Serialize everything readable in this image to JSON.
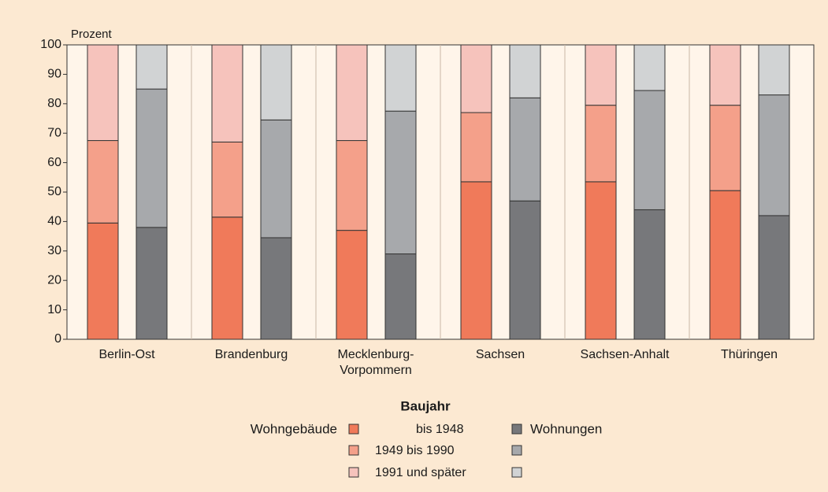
{
  "chart_data": {
    "type": "grouped_stacked_bar",
    "y_label": "Prozent",
    "legend_title": "Baujahr",
    "categories": [
      "Berlin-Ost",
      "Brandenburg",
      "Mecklenburg-\nVorpommern",
      "Sachsen",
      "Sachsen-Anhalt",
      "Thüringen"
    ],
    "period_names": [
      "bis 1948",
      "1949 bis 1990",
      "1991 und später"
    ],
    "groups": [
      {
        "name": "Wohngebäude",
        "series": [
          {
            "color": "#f07a5a",
            "values": [
              39.5,
              41.5,
              37,
              53.5,
              53.5,
              50.5
            ]
          },
          {
            "color": "#f4a08a",
            "values": [
              28,
              25.5,
              30.5,
              23.5,
              26,
              29
            ]
          },
          {
            "color": "#f6c3bc",
            "values": [
              32.5,
              33,
              32.5,
              23,
              20.5,
              20.5
            ]
          }
        ]
      },
      {
        "name": "Wohnungen",
        "series": [
          {
            "color": "#77787b",
            "values": [
              38,
              34.5,
              29,
              47,
              44,
              42
            ]
          },
          {
            "color": "#a7a9ac",
            "values": [
              47,
              40,
              48.5,
              35,
              40.5,
              41
            ]
          },
          {
            "color": "#d1d3d4",
            "values": [
              15,
              25.5,
              22.5,
              18,
              15.5,
              17
            ]
          }
        ]
      }
    ],
    "ylim": [
      0,
      100
    ],
    "yticks": [
      0,
      10,
      20,
      30,
      40,
      50,
      60,
      70,
      80,
      90,
      100
    ]
  }
}
